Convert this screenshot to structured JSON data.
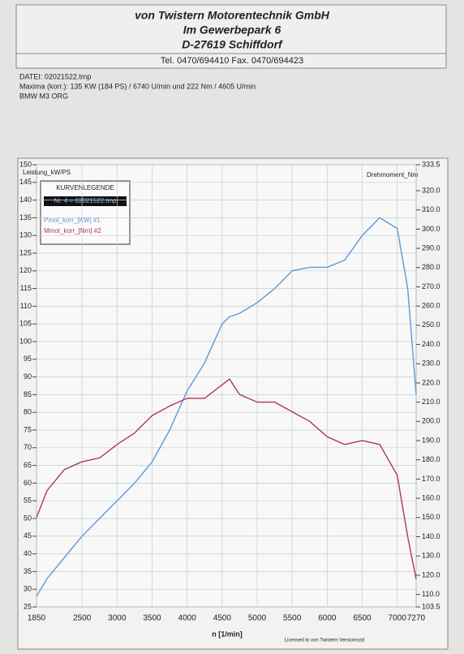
{
  "header": {
    "company": "von Twistern Motorentechnik GmbH",
    "street": "Im Gewerbepark 6",
    "city": "D-27619 Schiffdorf",
    "phone": "Tel. 0470/694410   Fax. 0470/694423"
  },
  "info": [
    "DATEI: 02021522.tmp",
    "Maxima (korr.): 135 KW (184 PS) / 6740 U/min  und  222 Nm / 4605 U/min",
    "BMW M3  ORG"
  ],
  "legend_box": {
    "title": "KURVENLEGENDE",
    "file": "Nr. 4 = 02021522.tmp"
  },
  "footer": "Licensed to von Twistern  Versionsstd",
  "chart_data": {
    "type": "line",
    "xlabel": "n [1/min]",
    "ylabel": "Leistung_kW/PS",
    "y2label": "Drehmoment_Nm",
    "x": [
      1850,
      2000,
      2250,
      2500,
      2750,
      3000,
      3250,
      3500,
      3750,
      4000,
      4250,
      4500,
      4605,
      4750,
      5000,
      5250,
      5500,
      5750,
      6000,
      6250,
      6500,
      6750,
      7000,
      7150,
      7270
    ],
    "series": [
      {
        "name": "Pmot_korr_[KW] #1",
        "color": "#5f9ad6",
        "values": [
          28,
          33,
          39,
          45,
          50,
          55,
          60,
          66,
          75,
          86,
          94,
          105,
          107,
          108,
          111,
          115,
          120,
          121,
          121,
          123,
          130,
          135,
          132,
          115,
          85
        ]
      },
      {
        "name": "Mmot_korr_[Nm] #2",
        "color": "#b0365a",
        "axis": "y2",
        "values": [
          150,
          164,
          175,
          179,
          181,
          188,
          194,
          203,
          208,
          212,
          212,
          219,
          222,
          214,
          210,
          210,
          205,
          200,
          192,
          188,
          190,
          188,
          172,
          140,
          118
        ]
      }
    ],
    "xlim": [
      1850,
      7270
    ],
    "xticks": [
      1850,
      2500,
      3000,
      3500,
      4000,
      4500,
      5000,
      5500,
      6000,
      6500,
      7000,
      7270
    ],
    "ylim": [
      25,
      150
    ],
    "yticks": [
      25,
      30,
      35,
      40,
      45,
      50,
      55,
      60,
      65,
      70,
      75,
      80,
      85,
      90,
      95,
      100,
      105,
      110,
      115,
      120,
      125,
      130,
      135,
      140,
      145,
      150
    ],
    "y2lim": [
      103.5,
      333.5
    ],
    "y2ticks": [
      103.5,
      {
        "value": 110,
        "label": "110.0"
      },
      {
        "value": 120,
        "label": "120.0"
      },
      {
        "value": 130,
        "label": "130.0"
      },
      {
        "value": 140,
        "label": "140.0"
      },
      {
        "value": 150,
        "label": "150.0"
      },
      {
        "value": 160,
        "label": "160.0"
      },
      {
        "value": 170,
        "label": "170.0"
      },
      {
        "value": 180,
        "label": "180.0"
      },
      {
        "value": 190,
        "label": "190.0"
      },
      {
        "value": 200,
        "label": "200.0"
      },
      {
        "value": 210,
        "label": "210.0"
      },
      {
        "value": 220,
        "label": "220.0"
      },
      {
        "value": 230,
        "label": "230.0"
      },
      {
        "value": 240,
        "label": "240.0"
      },
      {
        "value": 250,
        "label": "250.0"
      },
      {
        "value": 260,
        "label": "260.0"
      },
      {
        "value": 270,
        "label": "270.0"
      },
      {
        "value": 280,
        "label": "280.0"
      },
      {
        "value": 290,
        "label": "290.0"
      },
      {
        "value": 300,
        "label": "300.0"
      },
      {
        "value": 310,
        "label": "310.0"
      },
      {
        "value": 320,
        "label": "320.0"
      },
      333.5
    ],
    "grid": true
  }
}
